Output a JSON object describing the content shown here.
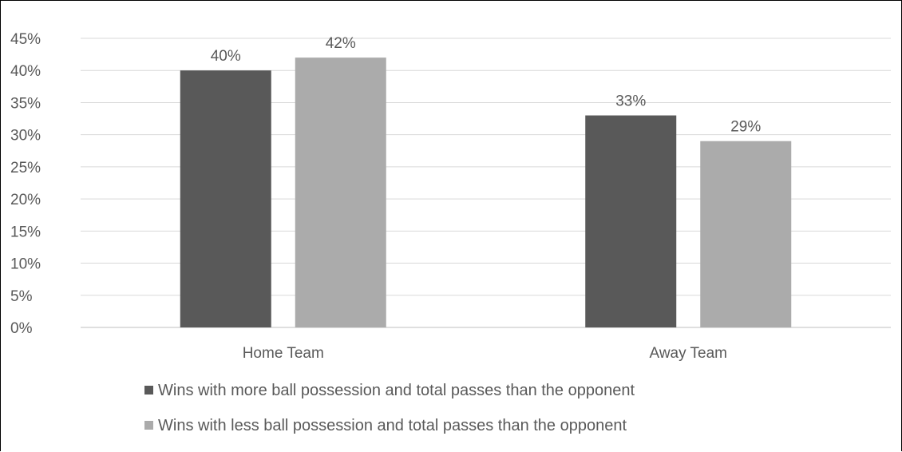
{
  "chart_data": {
    "type": "bar",
    "categories": [
      "Home Team",
      "Away Team"
    ],
    "series": [
      {
        "name": "Wins with more ball possession and total passes than the opponent",
        "values": [
          40,
          33
        ],
        "labels": [
          "40%",
          "33%"
        ],
        "color": "#595959"
      },
      {
        "name": "Wins with less ball possession and total passes than the opponent",
        "values": [
          42,
          29
        ],
        "labels": [
          "42%",
          "29%"
        ],
        "color": "#ababab"
      }
    ],
    "ylim": [
      0,
      45
    ],
    "yticks": [
      0,
      5,
      10,
      15,
      20,
      25,
      30,
      35,
      40,
      45
    ],
    "ytick_labels": [
      "0%",
      "5%",
      "10%",
      "15%",
      "20%",
      "25%",
      "30%",
      "35%",
      "40%",
      "45%"
    ],
    "grid": true,
    "legend_position": "bottom",
    "title": "",
    "xlabel": "",
    "ylabel": ""
  }
}
